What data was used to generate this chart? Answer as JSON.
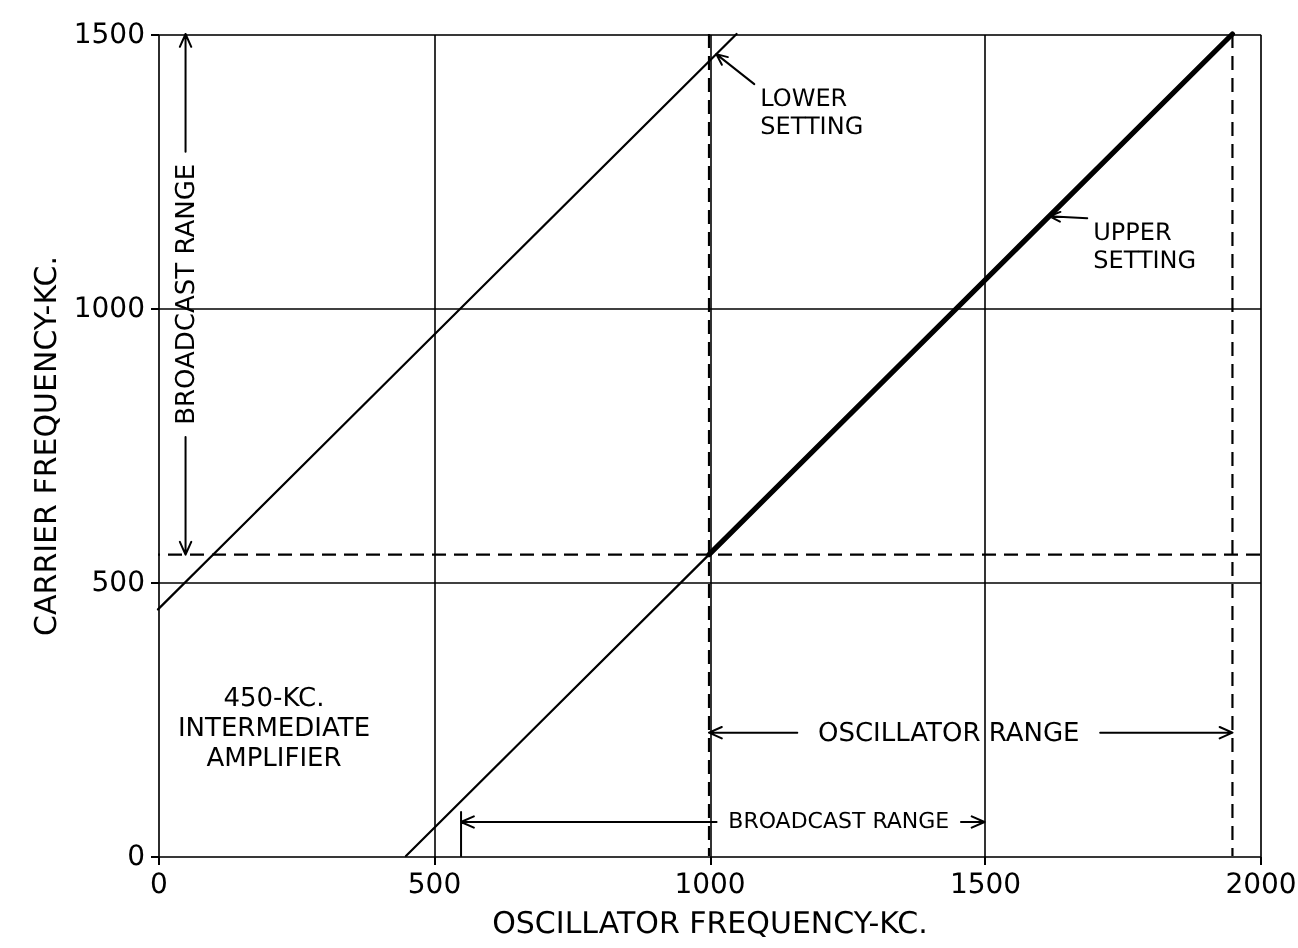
{
  "chart_data": {
    "type": "line",
    "xlabel": "OSCILLATOR FREQUENCY-KC.",
    "ylabel": "CARRIER FREQUENCY-KC.",
    "series": [
      {
        "name": "LOWER SETTING",
        "color": "#000000",
        "x": [
          0,
          1050
        ],
        "values": [
          450,
          1500
        ]
      },
      {
        "color": "#000000",
        "x": [
          450,
          1000
        ],
        "values": [
          0,
          550
        ]
      },
      {
        "name": "UPPER SETTING",
        "color": "#000000",
        "x": [
          1000,
          1950
        ],
        "values": [
          550,
          1500
        ]
      }
    ],
    "xlim": [
      0,
      2000
    ],
    "ylim": [
      0,
      1500
    ],
    "xticks": [
      0,
      500,
      1000,
      1500,
      2000
    ],
    "yticks": [
      0,
      500,
      1000,
      1500
    ],
    "grid": true,
    "ref_lines": [
      {
        "axis": "y",
        "value": 550,
        "line_style": "dashed",
        "color": "#000000"
      },
      {
        "axis": "x",
        "value": 1000,
        "line_style": "dashed",
        "color": "#000000"
      },
      {
        "axis": "x",
        "value": 1950,
        "line_style": "dashed",
        "color": "#000000"
      }
    ],
    "annotations": [
      {
        "text": "BROADCAST RANGE",
        "x": 50,
        "y": 550
      },
      "450-KC.\nINTERMEDIATE\nAMPLIFIER",
      {
        "text": "OSCILLATOR RANGE",
        "x": 1000,
        "y": 225
      },
      "BROADCAST RANGE"
    ]
  }
}
